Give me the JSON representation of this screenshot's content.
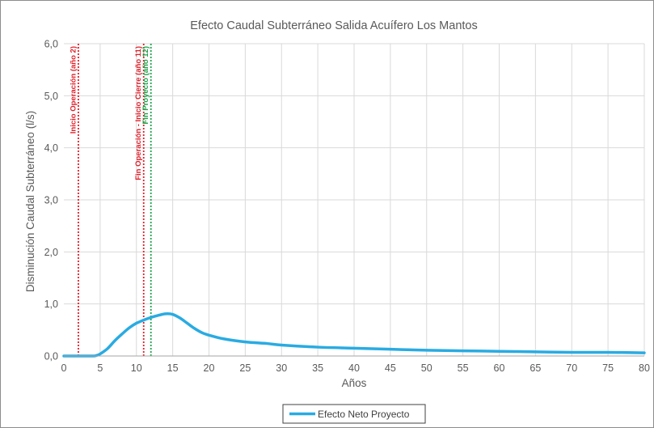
{
  "chart_data": {
    "type": "line",
    "title": "Efecto Caudal Subterráneo Salida Acuífero Los Mantos",
    "xlabel": "Años",
    "ylabel": "Disminución Caudal Subterráneo (l/s)",
    "xlim": [
      0,
      80
    ],
    "ylim": [
      0,
      6
    ],
    "x_ticks": [
      "0",
      "5",
      "10",
      "15",
      "20",
      "25",
      "30",
      "35",
      "40",
      "45",
      "50",
      "55",
      "60",
      "65",
      "70",
      "75",
      "80"
    ],
    "y_ticks": [
      "0,0",
      "1,0",
      "2,0",
      "3,0",
      "4,0",
      "5,0",
      "6,0"
    ],
    "grid": true,
    "legend_position": "bottom",
    "series": [
      {
        "name": "Efecto Neto Proyecto",
        "color": "#29abe2",
        "x": [
          0,
          2,
          4,
          4.5,
          5,
          6,
          7,
          8,
          9,
          10,
          11,
          12,
          13,
          14,
          15,
          16,
          17,
          18,
          19,
          20,
          22,
          25,
          28,
          30,
          35,
          40,
          45,
          50,
          55,
          60,
          65,
          70,
          75,
          80
        ],
        "y": [
          0,
          0,
          0,
          0.01,
          0.04,
          0.14,
          0.29,
          0.42,
          0.54,
          0.63,
          0.69,
          0.74,
          0.78,
          0.81,
          0.8,
          0.73,
          0.63,
          0.53,
          0.45,
          0.4,
          0.33,
          0.27,
          0.24,
          0.21,
          0.17,
          0.15,
          0.13,
          0.11,
          0.1,
          0.09,
          0.08,
          0.07,
          0.07,
          0.06
        ]
      }
    ],
    "vertical_lines": [
      {
        "x": 2,
        "label": "Inicio Operación (año 2)",
        "color": "#e0202a"
      },
      {
        "x": 11,
        "label": "Fin Operación - Inicio Cierre (año 11)",
        "color": "#e0202a"
      },
      {
        "x": 12,
        "label": "Fin Proyecto (año 12)",
        "color": "#1aa64a"
      }
    ]
  }
}
